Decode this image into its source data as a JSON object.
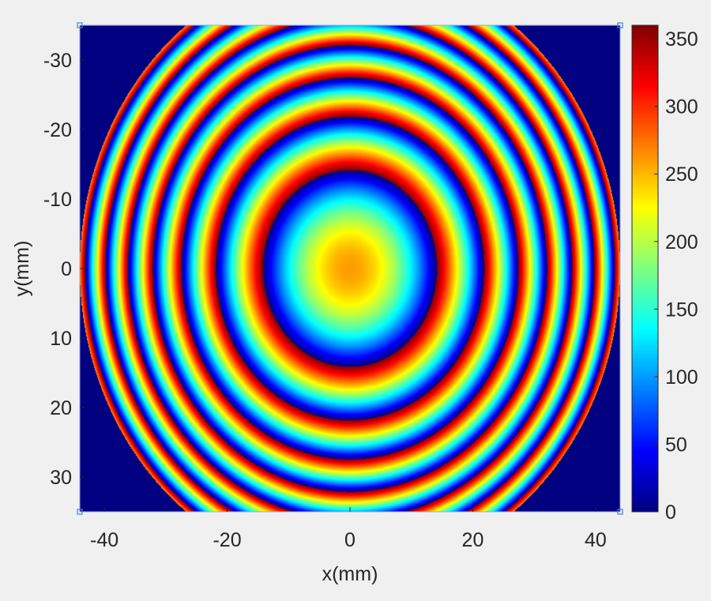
{
  "chart_data": {
    "type": "heatmap",
    "title": "",
    "xlabel": "x(mm)",
    "ylabel": "y(mm)",
    "xlim": [
      -44,
      44
    ],
    "ylim": [
      -35,
      35
    ],
    "y_direction": "reversed",
    "x_ticks": [
      -40,
      -20,
      0,
      20,
      40
    ],
    "x_tick_labels": [
      "-40",
      "-20",
      "0",
      "20",
      "40"
    ],
    "y_ticks": [
      -30,
      -20,
      -10,
      0,
      10,
      20,
      30
    ],
    "y_tick_labels": [
      "-30",
      "-20",
      "-10",
      "0",
      "10",
      "20",
      "30"
    ],
    "colorbar": {
      "range": [
        0,
        360
      ],
      "ticks": [
        0,
        50,
        100,
        150,
        200,
        250,
        300,
        350
      ],
      "tick_labels": [
        "0",
        "50",
        "100",
        "150",
        "200",
        "250",
        "300",
        "350"
      ],
      "colormap": "jet"
    },
    "pattern": {
      "description_shape": "concentric rings (wrapped phase)",
      "aperture_radius": 44,
      "outside_value": 0,
      "center_value": 260,
      "quadratic_coefficient": 1.3,
      "wrap_period": 360
    }
  },
  "colors": {
    "background": "#f0f0f0",
    "outside": "#00008f",
    "text": "#262626"
  }
}
